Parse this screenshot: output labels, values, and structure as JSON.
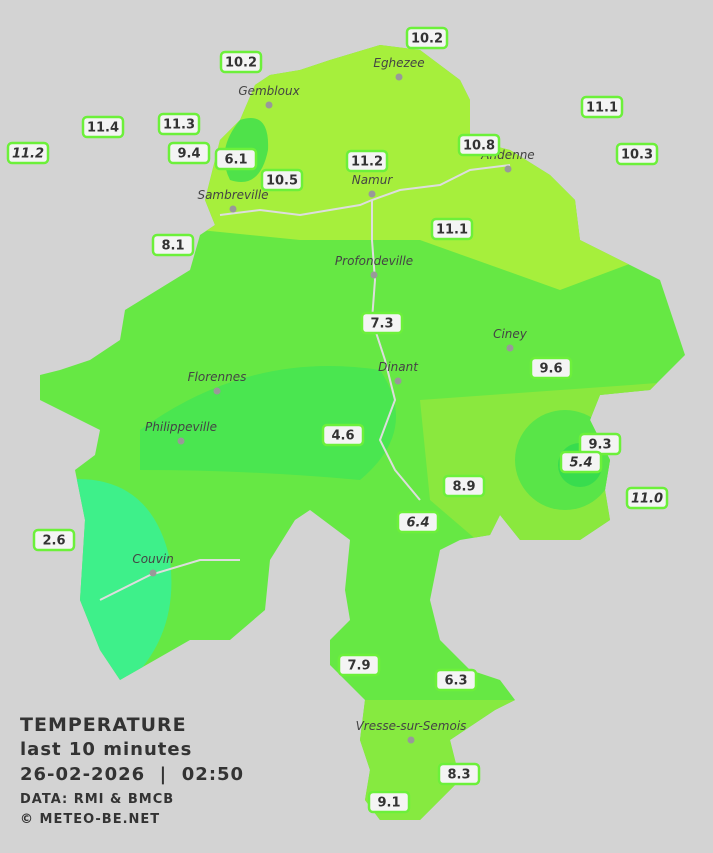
{
  "title": "TEMPERATURE",
  "subtitle": "last 10 minutes",
  "datetime": "26-02-2026  |  02:50",
  "source": "DATA: RMI & BMCB",
  "credit": "© METEO-BE.NET",
  "towns": [
    "Eghezee",
    "Gembloux",
    "Andenne",
    "Namur",
    "Sambreville",
    "Profondeville",
    "Ciney",
    "Dinant",
    "Florennes",
    "Philippeville",
    "Couvin",
    "Vresse-sur-Semois"
  ],
  "stations": [
    "10.2",
    "10.2",
    "11.4",
    "11.3",
    "11.2",
    "9.4",
    "6.1",
    "10.5",
    "11.2",
    "10.8",
    "11.1",
    "10.3",
    "11.1",
    "8.1",
    "7.3",
    "9.6",
    "4.6",
    "9.3",
    "5.4",
    "11.0",
    "8.9",
    "6.4",
    "2.6",
    "7.9",
    "6.3",
    "8.3",
    "9.1"
  ]
}
